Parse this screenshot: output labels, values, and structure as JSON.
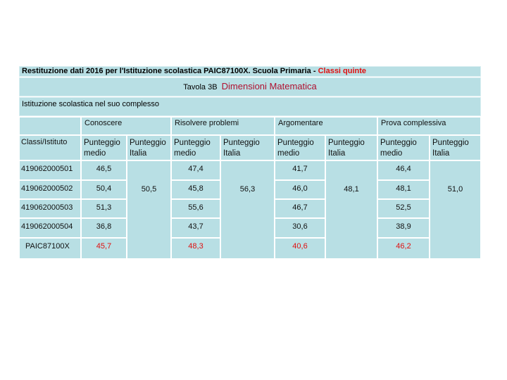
{
  "header": {
    "title": "Restituzione dati 2016 per l'Istituzione scolastica PAIC87100X. Scuola Primaria -",
    "title_highlight": "Classi quinte",
    "table_label": "Tavola 3B",
    "table_subject": "Dimensioni Matematica",
    "section": "Istituzione scolastica nel suo complesso"
  },
  "table": {
    "row_header": "Classi/Istituto",
    "groups": [
      "Conoscere",
      "Risolvere problemi",
      "Argomentare",
      "Prova complessiva"
    ],
    "sub_headers": [
      "Punteggio medio",
      "Punteggio Italia"
    ],
    "rows": [
      [
        "419062000501",
        "46,5",
        "47,4",
        "41,7",
        "46,4"
      ],
      [
        "419062000502",
        "50,4",
        "45,8",
        "46,0",
        "48,1"
      ],
      [
        "419062000503",
        "51,3",
        "55,6",
        "46,7",
        "52,5"
      ],
      [
        "419062000504",
        "36,8",
        "43,7",
        "30,6",
        "38,9"
      ],
      [
        "PAIC87100X",
        "45,7",
        "48,3",
        "40,6",
        "46,2"
      ]
    ],
    "italia": [
      "50,5",
      "56,3",
      "48,1",
      "51,0"
    ]
  }
}
